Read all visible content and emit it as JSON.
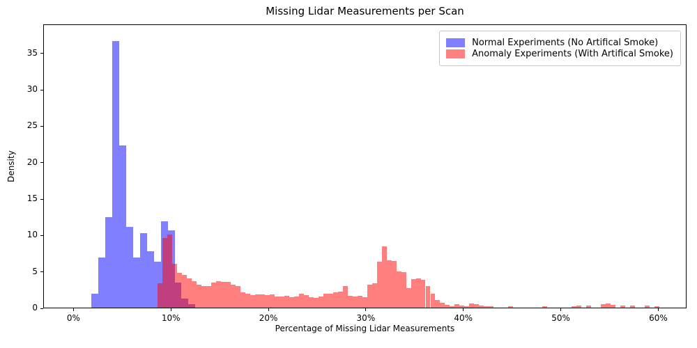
{
  "chart_data": {
    "type": "histogram",
    "title": "Missing Lidar Measurements per Scan",
    "xlabel": "Percentage of Missing Lidar Measurements",
    "ylabel": "Density",
    "xlim_pct": [
      -3.1,
      62.9
    ],
    "ylim": [
      0,
      39
    ],
    "grid": false,
    "legend_position": "upper right",
    "x_ticks": {
      "values": [
        0,
        10,
        20,
        30,
        40,
        50,
        60
      ],
      "labels": [
        "0%",
        "10%",
        "20%",
        "30%",
        "40%",
        "50%",
        "60%"
      ]
    },
    "y_ticks": {
      "values": [
        0,
        5,
        10,
        15,
        20,
        25,
        30,
        35
      ],
      "labels": [
        "0",
        "5",
        "10",
        "15",
        "20",
        "25",
        "30",
        "35"
      ]
    },
    "series": [
      {
        "id": "normal",
        "name": "Normal Experiments (No Artifical Smoke)",
        "base_color": "#0000ff",
        "fill": "rgba(0,0,255,0.5)",
        "swatch": "#8080ff",
        "bin_start_pct": 1.74,
        "bin_width_pct": 0.714,
        "densities": [
          1.9,
          6.9,
          12.4,
          36.6,
          22.3,
          11.1,
          6.9,
          10.2,
          7.7,
          6.3,
          11.9,
          10.6,
          3.4,
          1.2,
          0.5
        ]
      },
      {
        "id": "anomaly",
        "name": "Anomaly Experiments (With Artifical Smoke)",
        "base_color": "#ff0000",
        "fill": "rgba(255,0,0,0.5)",
        "swatch": "#ff8080",
        "bin_start_pct": 8.55,
        "bin_width_pct": 0.5,
        "densities": [
          3.3,
          9.6,
          10.0,
          6.0,
          4.8,
          4.5,
          4.0,
          3.6,
          3.2,
          3.0,
          3.0,
          3.4,
          3.6,
          3.5,
          3.5,
          3.2,
          3.0,
          2.1,
          1.9,
          1.7,
          1.8,
          1.8,
          1.7,
          1.8,
          1.5,
          1.5,
          1.6,
          1.4,
          1.5,
          1.9,
          1.7,
          1.4,
          1.3,
          1.5,
          1.9,
          1.9,
          2.1,
          2.2,
          3.0,
          1.6,
          1.5,
          1.6,
          1.4,
          3.2,
          3.3,
          6.3,
          8.4,
          6.5,
          6.4,
          5.0,
          4.9,
          2.7,
          3.9,
          4.0,
          3.8,
          3.0,
          1.9,
          1.1,
          0.7,
          0.4,
          0.2,
          0.5,
          0.3,
          0.2,
          0.6,
          0.5,
          0.3,
          0.2,
          0.2,
          0,
          0,
          0,
          0.15,
          0,
          0,
          0,
          0,
          0,
          0,
          0.15,
          0,
          0,
          0,
          0,
          0,
          0.2,
          0.25,
          0,
          0.3,
          0,
          0,
          0.5,
          0.55,
          0.4,
          0,
          0.25,
          0,
          0.3,
          0,
          0,
          0.25,
          0,
          0.15,
          0
        ]
      }
    ]
  }
}
